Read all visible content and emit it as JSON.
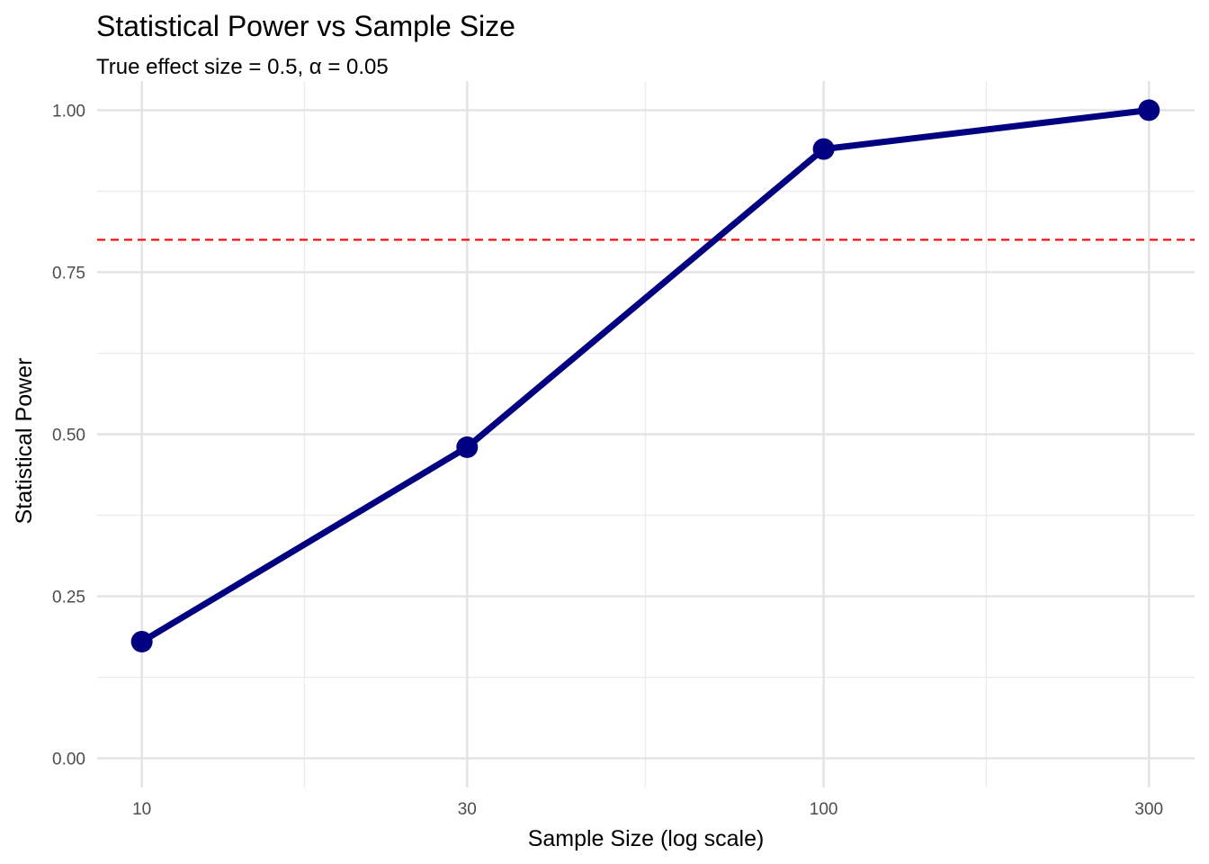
{
  "chart_data": {
    "type": "line",
    "title": "Statistical Power vs Sample Size",
    "subtitle": "True effect size = 0.5, α = 0.05",
    "xlabel": "Sample Size (log scale)",
    "ylabel": "Statistical Power",
    "x_scale": "log10",
    "xlim": [
      8.6,
      350
    ],
    "ylim": [
      -0.045,
      1.045
    ],
    "x_ticks": [
      10,
      30,
      100,
      300
    ],
    "x_minor_ticks": [
      17.32,
      54.77,
      173.2
    ],
    "y_ticks": [
      0,
      0.25,
      0.5,
      0.75,
      1.0
    ],
    "y_tick_labels": [
      "0.00",
      "0.25",
      "0.50",
      "0.75",
      "1.00"
    ],
    "y_minor_ticks": [
      0.125,
      0.375,
      0.625,
      0.875
    ],
    "grid": true,
    "series": [
      {
        "x": [
          10,
          30,
          100,
          300
        ],
        "values": [
          0.18,
          0.48,
          0.94,
          1.0
        ],
        "color": "#000080"
      }
    ],
    "reference_lines": [
      {
        "orientation": "horizontal",
        "y": 0.8,
        "style": "dashed",
        "color": "#ff0000"
      }
    ]
  }
}
